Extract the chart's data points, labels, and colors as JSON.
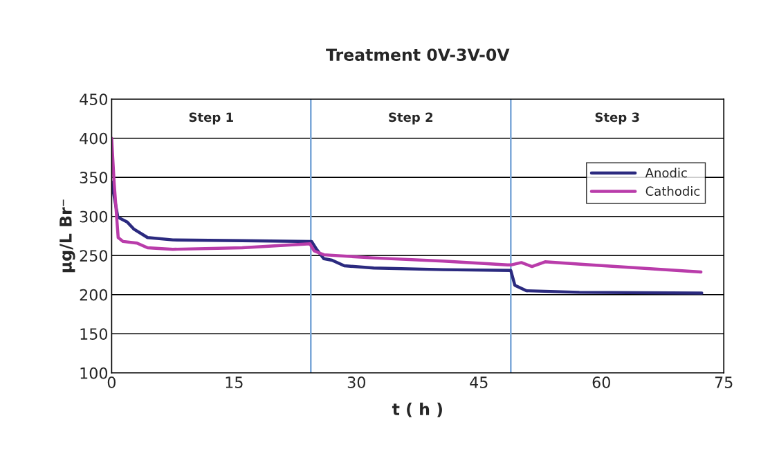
{
  "chart_data": {
    "type": "line",
    "title": "Treatment 0V-3V-0V",
    "xlabel": "t ( h )",
    "ylabel": "μg/L Br⁻",
    "xlim": [
      0,
      75
    ],
    "xticks": [
      0,
      15,
      30,
      45,
      60,
      75
    ],
    "ylim": [
      100,
      450
    ],
    "yticks": [
      100,
      150,
      200,
      250,
      300,
      350,
      400,
      450
    ],
    "grid": "y",
    "legend": "top right",
    "marker": "none",
    "line_style": "solid",
    "series": [
      {
        "name": "Anodic",
        "color": "#2b2a7f",
        "x": [
          0,
          0.76,
          1.9,
          2.7,
          4.4,
          7.5,
          16,
          24.5,
          25.1,
          26,
          27,
          28.5,
          32.1,
          40.6,
          48.9,
          49.4,
          50.8,
          57.3,
          72.3
        ],
        "values": [
          344,
          299,
          293,
          284,
          273,
          270,
          269,
          268,
          258,
          246,
          244,
          237,
          234,
          232,
          231,
          212,
          205,
          203,
          202
        ]
      },
      {
        "name": "Cathodic",
        "color": "#b93caa",
        "x": [
          0,
          0.3,
          0.8,
          1.4,
          3.1,
          4.4,
          7.5,
          16,
          24.3,
          24.8,
          26,
          32,
          40.6,
          48.5,
          48.9,
          50.2,
          51.5,
          53.1,
          58.7,
          72.2
        ],
        "values": [
          400,
          344,
          273,
          268,
          266,
          260,
          258,
          260,
          265,
          256,
          251,
          247,
          243,
          238,
          238,
          241,
          236,
          242,
          238,
          229
        ]
      }
    ],
    "ref_lines": [
      {
        "axis": "x",
        "value": 24.4,
        "color": "#7ba7d8"
      },
      {
        "axis": "x",
        "value": 48.9,
        "color": "#7ba7d8"
      }
    ],
    "annotations": [
      "Step 1",
      "Step 2",
      "Step 3"
    ]
  }
}
